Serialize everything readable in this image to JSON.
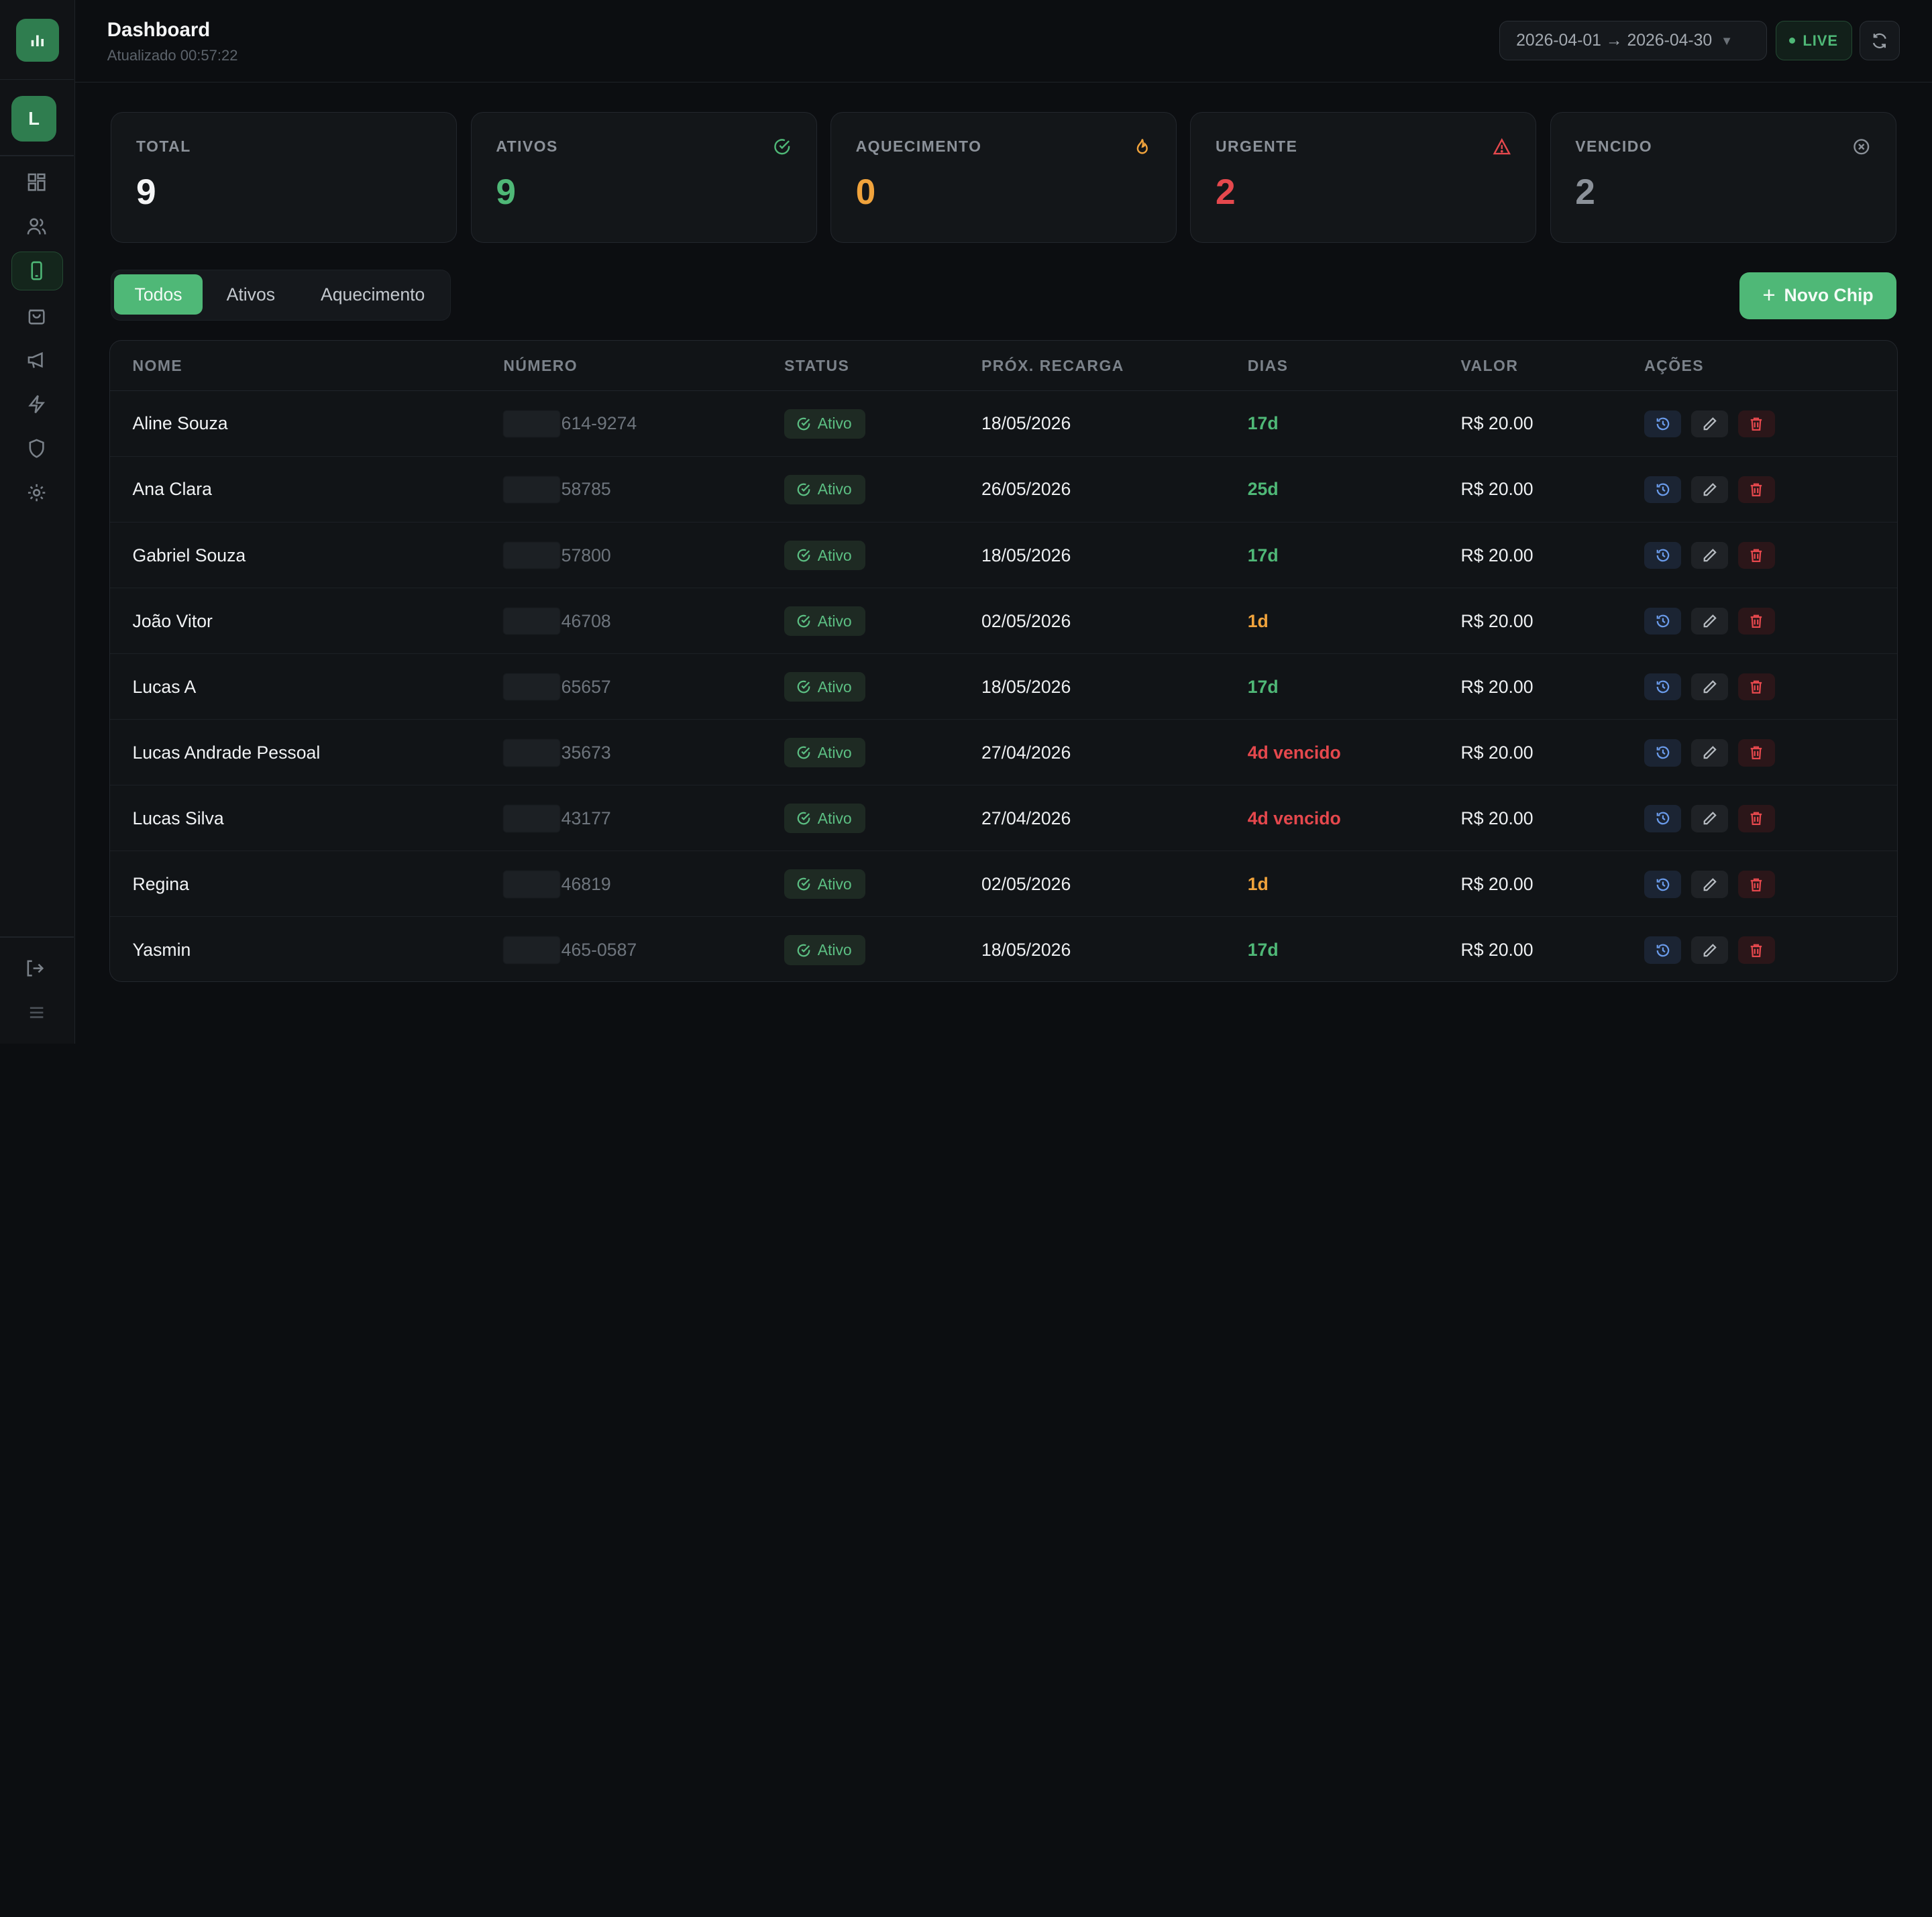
{
  "header": {
    "title": "Dashboard",
    "updated": "Atualizado 00:57:22",
    "date_range": "2026-04-01 → 2026-04-30",
    "live_label": "LIVE"
  },
  "user": {
    "initial": "L"
  },
  "sidebar": {
    "items": [
      {
        "icon": "grid-icon"
      },
      {
        "icon": "users-icon"
      },
      {
        "icon": "phone-icon",
        "active": true
      },
      {
        "icon": "bag-icon"
      },
      {
        "icon": "megaphone-icon"
      },
      {
        "icon": "bolt-icon"
      },
      {
        "icon": "shield-icon"
      },
      {
        "icon": "gear-icon"
      }
    ]
  },
  "stats": [
    {
      "label": "TOTAL",
      "value": "9",
      "color": "#f4f5f6"
    },
    {
      "label": "ATIVOS",
      "value": "9",
      "color": "#4fb877",
      "icon": "check-circle-icon"
    },
    {
      "label": "AQUECIMENTO",
      "value": "0",
      "color": "#f0a33c",
      "icon": "flame-icon"
    },
    {
      "label": "URGENTE",
      "value": "2",
      "color": "#e5484d",
      "icon": "warning-icon"
    },
    {
      "label": "VENCIDO",
      "value": "2",
      "color": "#8b9199",
      "icon": "x-circle-icon"
    }
  ],
  "tabs": [
    "Todos",
    "Ativos",
    "Aquecimento"
  ],
  "new_button": "Novo Chip",
  "table": {
    "columns": [
      "NOME",
      "NÚMERO",
      "STATUS",
      "PRÓX. RECARGA",
      "DIAS",
      "VALOR",
      "AÇÕES"
    ],
    "rows": [
      {
        "name": "Aline Souza",
        "number": "614-9274",
        "status": "Ativo",
        "date": "18/05/2026",
        "days": "17d",
        "days_color": "#4fb877",
        "value": "R$ 20.00"
      },
      {
        "name": "Ana Clara",
        "number": "58785",
        "status": "Ativo",
        "date": "26/05/2026",
        "days": "25d",
        "days_color": "#4fb877",
        "value": "R$ 20.00"
      },
      {
        "name": "Gabriel Souza",
        "number": "57800",
        "status": "Ativo",
        "date": "18/05/2026",
        "days": "17d",
        "days_color": "#4fb877",
        "value": "R$ 20.00"
      },
      {
        "name": "João Vitor",
        "number": "46708",
        "status": "Ativo",
        "date": "02/05/2026",
        "days": "1d",
        "days_color": "#f0a33c",
        "value": "R$ 20.00"
      },
      {
        "name": "Lucas A",
        "number": "65657",
        "status": "Ativo",
        "date": "18/05/2026",
        "days": "17d",
        "days_color": "#4fb877",
        "value": "R$ 20.00"
      },
      {
        "name": "Lucas Andrade Pessoal",
        "number": "35673",
        "status": "Ativo",
        "date": "27/04/2026",
        "days": "4d vencido",
        "days_color": "#e5484d",
        "value": "R$ 20.00"
      },
      {
        "name": "Lucas Silva",
        "number": "43177",
        "status": "Ativo",
        "date": "27/04/2026",
        "days": "4d vencido",
        "days_color": "#e5484d",
        "value": "R$ 20.00"
      },
      {
        "name": "Regina",
        "number": "46819",
        "status": "Ativo",
        "date": "02/05/2026",
        "days": "1d",
        "days_color": "#f0a33c",
        "value": "R$ 20.00"
      },
      {
        "name": "Yasmin",
        "number": "465-0587",
        "status": "Ativo",
        "date": "18/05/2026",
        "days": "17d",
        "days_color": "#4fb877",
        "value": "R$ 20.00"
      }
    ]
  }
}
